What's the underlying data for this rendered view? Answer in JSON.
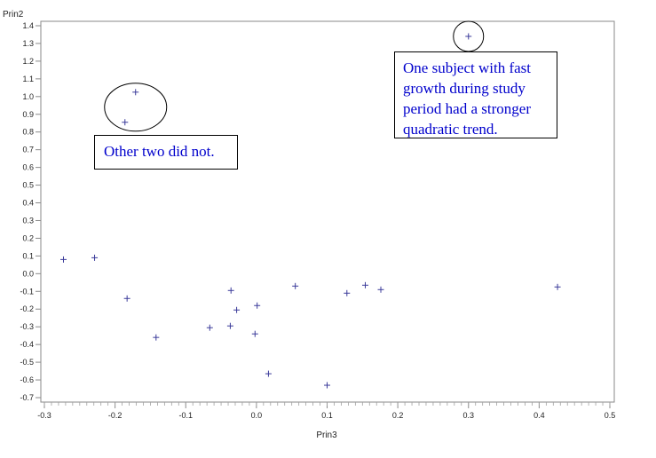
{
  "chart_data": {
    "type": "scatter",
    "xlabel": "Prin3",
    "ylabel": "Prin2",
    "xlim": [
      -0.3,
      0.5
    ],
    "ylim": [
      -0.7,
      1.4
    ],
    "x_ticks": [
      "-0.3",
      "-0.2",
      "-0.1",
      "0.0",
      "0.1",
      "0.2",
      "0.3",
      "0.4",
      "0.5"
    ],
    "y_ticks": [
      "-0.7",
      "-0.6",
      "-0.5",
      "-0.4",
      "-0.3",
      "-0.2",
      "-0.1",
      "0.0",
      "0.1",
      "0.2",
      "0.3",
      "0.4",
      "0.5",
      "0.6",
      "0.7",
      "0.8",
      "0.9",
      "1.0",
      "1.1",
      "1.2",
      "1.3",
      "1.4"
    ],
    "marker": "+",
    "points": [
      {
        "x": 0.3,
        "y": 1.34
      },
      {
        "x": -0.171,
        "y": 1.025
      },
      {
        "x": -0.186,
        "y": 0.855
      },
      {
        "x": -0.273,
        "y": 0.08
      },
      {
        "x": -0.229,
        "y": 0.09
      },
      {
        "x": -0.183,
        "y": -0.14
      },
      {
        "x": -0.142,
        "y": -0.36
      },
      {
        "x": -0.066,
        "y": -0.305
      },
      {
        "x": -0.037,
        "y": -0.295
      },
      {
        "x": -0.036,
        "y": -0.095
      },
      {
        "x": -0.028,
        "y": -0.205
      },
      {
        "x": -0.002,
        "y": -0.34
      },
      {
        "x": 0.001,
        "y": -0.18
      },
      {
        "x": 0.017,
        "y": -0.565
      },
      {
        "x": 0.055,
        "y": -0.07
      },
      {
        "x": 0.1,
        "y": -0.63
      },
      {
        "x": 0.128,
        "y": -0.11
      },
      {
        "x": 0.154,
        "y": -0.065
      },
      {
        "x": 0.176,
        "y": -0.09
      },
      {
        "x": 0.426,
        "y": -0.075
      }
    ],
    "annotations": [
      {
        "text": "One subject with fast growth during study period had a stronger quadratic trend.",
        "points_circled": [
          0
        ]
      },
      {
        "text": "Other two did not.",
        "points_circled": [
          1,
          2
        ]
      }
    ]
  }
}
